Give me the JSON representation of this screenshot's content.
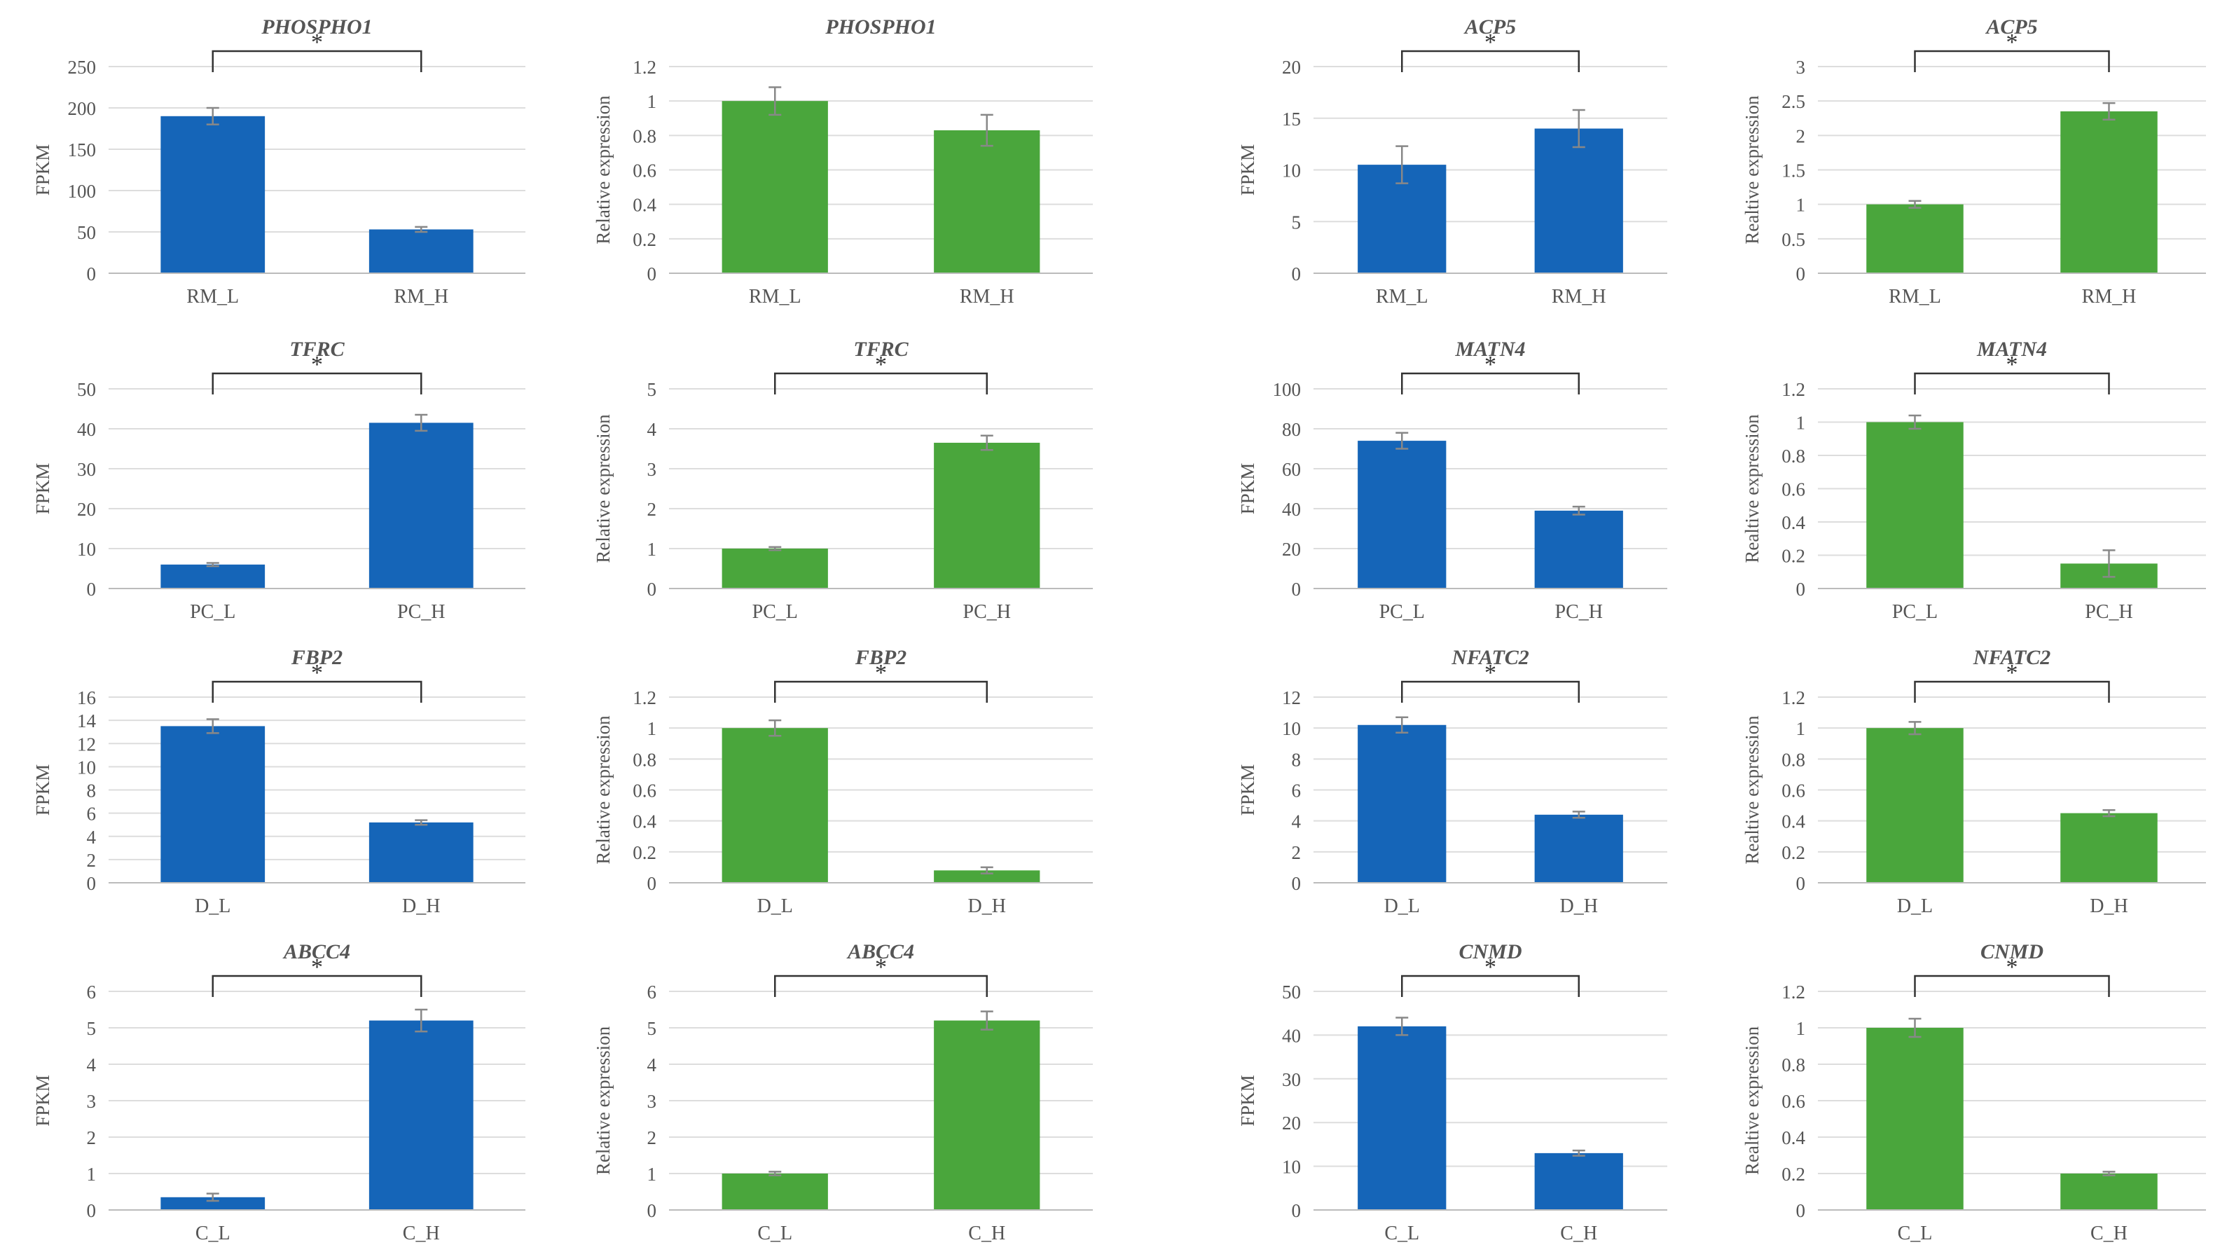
{
  "colors": {
    "fpkm_bar": "#1565b8",
    "qpcr_bar": "#4aa63c",
    "axis_text": "#555555",
    "grid": "#dddddd",
    "title": "#555555"
  },
  "star": "*",
  "chart_data": [
    {
      "type": "bar",
      "title": "PHOSPHO1",
      "ylabel": "FPKM",
      "categories": [
        "RM_L",
        "RM_H"
      ],
      "values": [
        190,
        53
      ],
      "errors": [
        10,
        3
      ],
      "ylim": [
        0,
        250
      ],
      "yticks": [
        "0",
        "50",
        "100",
        "150",
        "200",
        "250"
      ],
      "significance": true,
      "color": "fpkm"
    },
    {
      "type": "bar",
      "title": "PHOSPHO1",
      "ylabel": "Relative  expression",
      "categories": [
        "RM_L",
        "RM_H"
      ],
      "values": [
        1,
        0.83
      ],
      "errors": [
        0.08,
        0.09
      ],
      "ylim": [
        0,
        1.2
      ],
      "yticks": [
        "0",
        "0.2",
        "0.4",
        "0.6",
        "0.8",
        "1",
        "1.2"
      ],
      "significance": false,
      "color": "qpcr"
    },
    {
      "type": "bar",
      "title": "ACP5",
      "ylabel": "FPKM",
      "categories": [
        "RM_L",
        "RM_H"
      ],
      "values": [
        10.5,
        14
      ],
      "errors": [
        1.8,
        1.8
      ],
      "ylim": [
        0,
        20
      ],
      "yticks": [
        "0",
        "5",
        "10",
        "15",
        "20"
      ],
      "significance": true,
      "color": "fpkm"
    },
    {
      "type": "bar",
      "title": "ACP5",
      "ylabel": "Realtive expression",
      "categories": [
        "RM_L",
        "RM_H"
      ],
      "values": [
        1,
        2.35
      ],
      "errors": [
        0.05,
        0.12
      ],
      "ylim": [
        0,
        3
      ],
      "yticks": [
        "0",
        "0.5",
        "1",
        "1.5",
        "2",
        "2.5",
        "3"
      ],
      "significance": true,
      "color": "qpcr"
    },
    {
      "type": "bar",
      "title": "TFRC",
      "ylabel": "FPKM",
      "categories": [
        "PC_L",
        "PC_H"
      ],
      "values": [
        6,
        41.5
      ],
      "errors": [
        0.4,
        2
      ],
      "ylim": [
        0,
        50
      ],
      "yticks": [
        "0",
        "10",
        "20",
        "30",
        "40",
        "50"
      ],
      "significance": true,
      "color": "fpkm"
    },
    {
      "type": "bar",
      "title": "TFRC",
      "ylabel": "Relative  expression",
      "categories": [
        "PC_L",
        "PC_H"
      ],
      "values": [
        1,
        3.65
      ],
      "errors": [
        0.04,
        0.18
      ],
      "ylim": [
        0,
        5
      ],
      "yticks": [
        "0",
        "1",
        "2",
        "3",
        "4",
        "5"
      ],
      "significance": true,
      "color": "qpcr"
    },
    {
      "type": "bar",
      "title": "MATN4",
      "ylabel": "FPKM",
      "categories": [
        "PC_L",
        "PC_H"
      ],
      "values": [
        74,
        39
      ],
      "errors": [
        4,
        2
      ],
      "ylim": [
        0,
        100
      ],
      "yticks": [
        "0",
        "20",
        "40",
        "60",
        "80",
        "100"
      ],
      "significance": true,
      "color": "fpkm"
    },
    {
      "type": "bar",
      "title": "MATN4",
      "ylabel": "Realtive expression",
      "categories": [
        "PC_L",
        "PC_H"
      ],
      "values": [
        1,
        0.15
      ],
      "errors": [
        0.04,
        0.08
      ],
      "ylim": [
        0,
        1.2
      ],
      "yticks": [
        "0",
        "0.2",
        "0.4",
        "0.6",
        "0.8",
        "1",
        "1.2"
      ],
      "significance": true,
      "color": "qpcr"
    },
    {
      "type": "bar",
      "title": "FBP2",
      "ylabel": "FPKM",
      "categories": [
        "D_L",
        "D_H"
      ],
      "values": [
        13.5,
        5.2
      ],
      "errors": [
        0.6,
        0.2
      ],
      "ylim": [
        0,
        16
      ],
      "yticks": [
        "0",
        "2",
        "4",
        "6",
        "8",
        "10",
        "12",
        "14",
        "16"
      ],
      "significance": true,
      "color": "fpkm"
    },
    {
      "type": "bar",
      "title": "FBP2",
      "ylabel": "Relative  expression",
      "categories": [
        "D_L",
        "D_H"
      ],
      "values": [
        1,
        0.08
      ],
      "errors": [
        0.05,
        0.02
      ],
      "ylim": [
        0,
        1.2
      ],
      "yticks": [
        "0",
        "0.2",
        "0.4",
        "0.6",
        "0.8",
        "1",
        "1.2"
      ],
      "significance": true,
      "color": "qpcr"
    },
    {
      "type": "bar",
      "title": "NFATC2",
      "ylabel": "FPKM",
      "categories": [
        "D_L",
        "D_H"
      ],
      "values": [
        10.2,
        4.4
      ],
      "errors": [
        0.5,
        0.2
      ],
      "ylim": [
        0,
        12
      ],
      "yticks": [
        "0",
        "2",
        "4",
        "6",
        "8",
        "10",
        "12"
      ],
      "significance": true,
      "color": "fpkm"
    },
    {
      "type": "bar",
      "title": "NFATC2",
      "ylabel": "Realtive expression",
      "categories": [
        "D_L",
        "D_H"
      ],
      "values": [
        1,
        0.45
      ],
      "errors": [
        0.04,
        0.02
      ],
      "ylim": [
        0,
        1.2
      ],
      "yticks": [
        "0",
        "0.2",
        "0.4",
        "0.6",
        "0.8",
        "1",
        "1.2"
      ],
      "significance": true,
      "color": "qpcr"
    },
    {
      "type": "bar",
      "title": "ABCC4",
      "ylabel": "FPKM",
      "categories": [
        "C_L",
        "C_H"
      ],
      "values": [
        0.35,
        5.2
      ],
      "errors": [
        0.1,
        0.3
      ],
      "ylim": [
        0,
        6
      ],
      "yticks": [
        "0",
        "1",
        "2",
        "3",
        "4",
        "5",
        "6"
      ],
      "significance": true,
      "color": "fpkm"
    },
    {
      "type": "bar",
      "title": "ABCC4",
      "ylabel": "Relative  expression",
      "categories": [
        "C_L",
        "C_H"
      ],
      "values": [
        1,
        5.2
      ],
      "errors": [
        0.05,
        0.25
      ],
      "ylim": [
        0,
        6
      ],
      "yticks": [
        "0",
        "1",
        "2",
        "3",
        "4",
        "5",
        "6"
      ],
      "significance": true,
      "color": "qpcr"
    },
    {
      "type": "bar",
      "title": "CNMD",
      "ylabel": "FPKM",
      "categories": [
        "C_L",
        "C_H"
      ],
      "values": [
        42,
        13
      ],
      "errors": [
        2,
        0.6
      ],
      "ylim": [
        0,
        50
      ],
      "yticks": [
        "0",
        "10",
        "20",
        "30",
        "40",
        "50"
      ],
      "significance": true,
      "color": "fpkm"
    },
    {
      "type": "bar",
      "title": "CNMD",
      "ylabel": "Realtive expression",
      "categories": [
        "C_L",
        "C_H"
      ],
      "values": [
        1,
        0.2
      ],
      "errors": [
        0.05,
        0.01
      ],
      "ylim": [
        0,
        1.2
      ],
      "yticks": [
        "0",
        "0.2",
        "0.4",
        "0.6",
        "0.8",
        "1",
        "1.2"
      ],
      "significance": true,
      "color": "qpcr"
    }
  ]
}
